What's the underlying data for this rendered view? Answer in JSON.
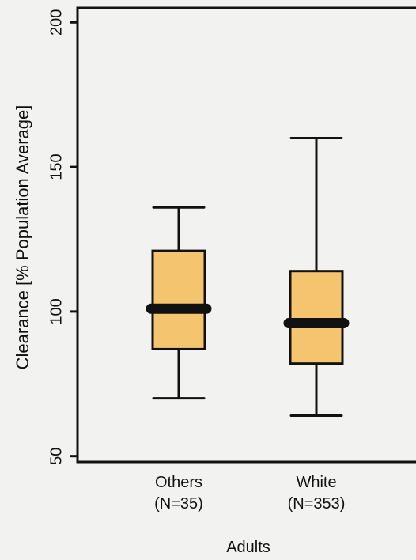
{
  "chart_data": {
    "type": "box",
    "ylabel": "Clearance [% Population Average]",
    "xlabel": "Adults",
    "ylim": [
      48,
      205
    ],
    "yticks": [
      50,
      100,
      150,
      200
    ],
    "grid": false,
    "box_color": "#f5c46e",
    "line_color": "#111111",
    "categories": [
      {
        "label": "Others",
        "n_label": "(N=35)",
        "whisker_low": 70,
        "q1": 87,
        "median": 101,
        "q3": 121,
        "whisker_high": 136
      },
      {
        "label": "White",
        "n_label": "(N=353)",
        "whisker_low": 64,
        "q1": 82,
        "median": 96,
        "q3": 114,
        "whisker_high": 160
      }
    ]
  }
}
